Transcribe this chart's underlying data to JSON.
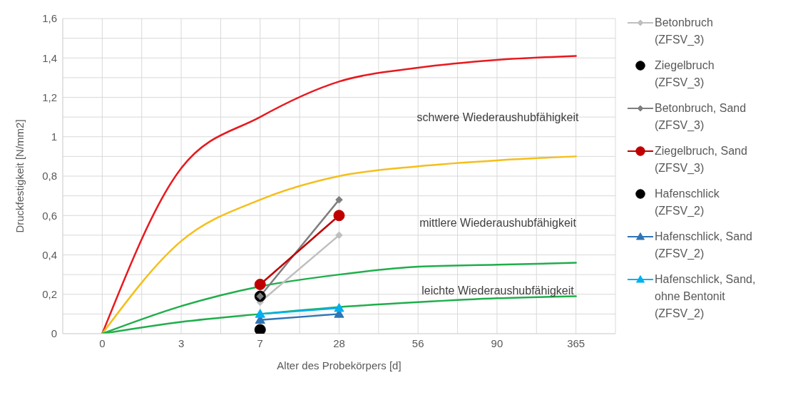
{
  "chart_data": {
    "type": "line",
    "xlabel": "Alter des Probekörpers [d]",
    "ylabel": "Druckfestigkeit [N/mm2]",
    "categories": [
      "0",
      "3",
      "7",
      "28",
      "56",
      "90",
      "365"
    ],
    "ylim": [
      0,
      1.6
    ],
    "yticks": [
      0,
      {
        "value": 0.1,
        "label": null
      },
      {
        "value": 0.2,
        "label": "0,2"
      },
      {
        "value": 0.3,
        "label": null
      },
      {
        "value": 0.4,
        "label": "0,4"
      },
      {
        "value": 0.5,
        "label": null
      },
      {
        "value": 0.6,
        "label": "0,6"
      },
      {
        "value": 0.7,
        "label": null
      },
      {
        "value": 0.8,
        "label": "0,8"
      },
      {
        "value": 0.9,
        "label": null
      },
      1,
      {
        "value": 1.1,
        "label": null
      },
      {
        "value": 1.2,
        "label": "1,2"
      },
      {
        "value": 1.3,
        "label": null
      },
      {
        "value": 1.4,
        "label": "1,4"
      },
      {
        "value": 1.5,
        "label": null
      },
      {
        "value": 1.6,
        "label": "1,6"
      }
    ],
    "grid": true,
    "legend": "right",
    "series": [
      {
        "color": "#e8191e",
        "marker": "none",
        "values": [
          0,
          0.84,
          1.1,
          1.28,
          1.35,
          1.39,
          1.41
        ]
      },
      {
        "color": "#f5be1a",
        "marker": "none",
        "values": [
          0,
          0.47,
          0.68,
          0.8,
          0.85,
          0.88,
          0.9
        ]
      },
      {
        "color": "#1fae4b",
        "marker": "none",
        "values": [
          0,
          0.14,
          0.24,
          0.3,
          0.34,
          0.35,
          0.36
        ]
      },
      {
        "color": "#1fae4b",
        "marker": "none",
        "values": [
          0,
          0.06,
          0.1,
          0.135,
          0.16,
          0.18,
          0.19
        ]
      },
      {
        "name": "Betonbruch\n(ZFSV_3)",
        "color": "#bfbfbf",
        "marker": "diamond",
        "values": [
          null,
          null,
          0.16,
          0.5,
          null,
          null,
          null
        ]
      },
      {
        "name": "Ziegelbruch\n(ZFSV_3)",
        "color": "#000000",
        "marker": "circle",
        "line_style": "none",
        "values": [
          null,
          null,
          0.19,
          null,
          null,
          null,
          null
        ]
      },
      {
        "name": "Betonbruch, Sand\n(ZFSV_3)",
        "color": "#7f7f7f",
        "marker": "diamond",
        "values": [
          null,
          null,
          0.19,
          0.68,
          null,
          null,
          null
        ]
      },
      {
        "name": "Ziegelbruch, Sand\n(ZFSV_3)",
        "color": "#c00000",
        "marker": "circle",
        "values": [
          null,
          null,
          0.25,
          0.6,
          null,
          null,
          null
        ]
      },
      {
        "name": "Hafenschlick\n(ZFSV_2)",
        "color": "#000000",
        "marker": "circle",
        "line_style": "none",
        "values": [
          null,
          null,
          0.02,
          null,
          null,
          null,
          null
        ]
      },
      {
        "name": "Hafenschlick, Sand\n(ZFSV_2)",
        "color": "#2e75b6",
        "marker": "triangle",
        "values": [
          null,
          null,
          0.07,
          0.1,
          null,
          null,
          null
        ]
      },
      {
        "name": "Hafenschlick, Sand,\nohne Bentonit\n(ZFSV_2)",
        "color": "#00b0f0",
        "marker": "triangle",
        "values": [
          null,
          null,
          0.1,
          0.13,
          null,
          null,
          null
        ]
      }
    ],
    "annotations": [
      "schwere Wiederaushubfähigkeit",
      "mittlere Wiederaushubfähigkeit",
      "leichte Wiederaushubfähigkeit"
    ]
  }
}
